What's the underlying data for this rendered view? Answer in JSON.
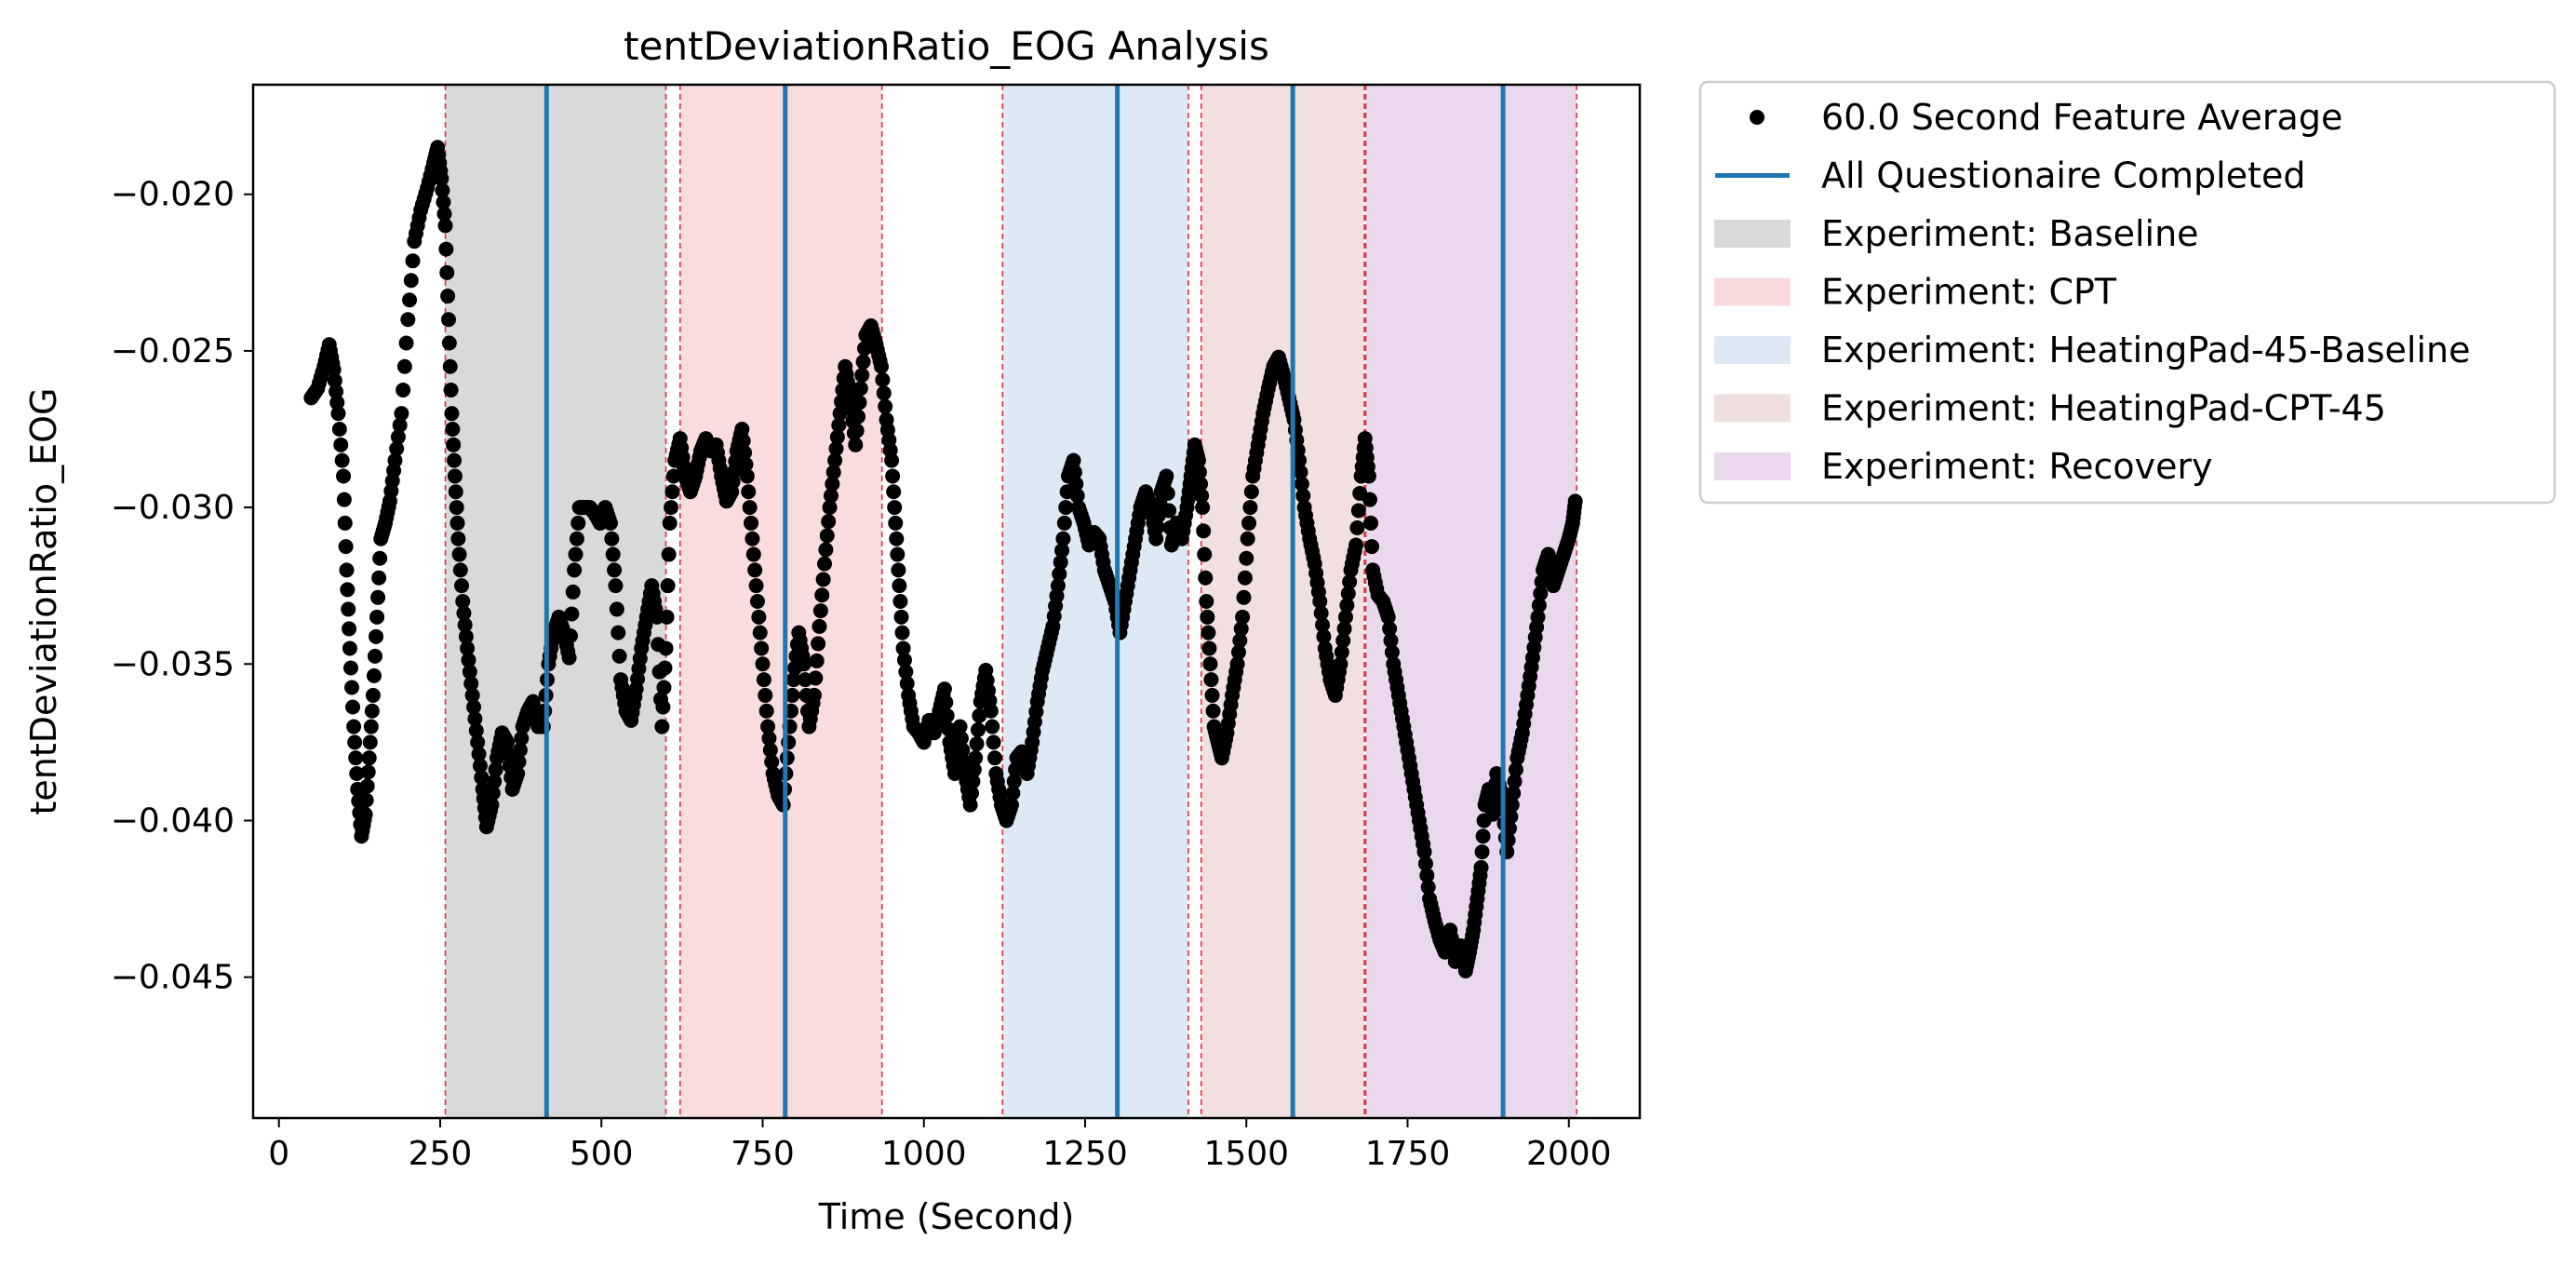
{
  "chart_data": {
    "type": "scatter",
    "title": "tentDeviationRatio_EOG Analysis",
    "xlabel": "Time (Second)",
    "ylabel": "tentDeviationRatio_EOG",
    "xlim": [
      -40,
      2110
    ],
    "ylim": [
      -0.0495,
      -0.0165
    ],
    "xticks": [
      0,
      250,
      500,
      750,
      1000,
      1250,
      1500,
      1750,
      2000
    ],
    "xtick_labels": [
      "0",
      "250",
      "500",
      "750",
      "1000",
      "1250",
      "1500",
      "1750",
      "2000"
    ],
    "yticks": [
      -0.02,
      -0.025,
      -0.03,
      -0.035,
      -0.04,
      -0.045
    ],
    "ytick_labels": [
      "−0.020",
      "−0.025",
      "−0.030",
      "−0.035",
      "−0.040",
      "−0.045"
    ],
    "grid": false,
    "legend_position": "outside-right-top",
    "series": [
      {
        "name": "60.0 Second Feature Average",
        "color": "#000000",
        "marker": "circle",
        "points": [
          [
            50,
            -0.0265
          ],
          [
            60,
            -0.0262
          ],
          [
            70,
            -0.0255
          ],
          [
            78,
            -0.0248
          ],
          [
            85,
            -0.0256
          ],
          [
            92,
            -0.027
          ],
          [
            100,
            -0.029
          ],
          [
            105,
            -0.032
          ],
          [
            110,
            -0.0345
          ],
          [
            116,
            -0.037
          ],
          [
            122,
            -0.039
          ],
          [
            128,
            -0.0405
          ],
          [
            134,
            -0.0398
          ],
          [
            140,
            -0.038
          ],
          [
            146,
            -0.036
          ],
          [
            152,
            -0.0335
          ],
          [
            158,
            -0.031
          ],
          [
            165,
            -0.0305
          ],
          [
            172,
            -0.0298
          ],
          [
            180,
            -0.0285
          ],
          [
            190,
            -0.027
          ],
          [
            200,
            -0.024
          ],
          [
            210,
            -0.0215
          ],
          [
            220,
            -0.0205
          ],
          [
            230,
            -0.0198
          ],
          [
            240,
            -0.019
          ],
          [
            246,
            -0.0185
          ],
          [
            252,
            -0.0195
          ],
          [
            258,
            -0.021
          ],
          [
            263,
            -0.024
          ],
          [
            268,
            -0.027
          ],
          [
            273,
            -0.029
          ],
          [
            278,
            -0.031
          ],
          [
            285,
            -0.033
          ],
          [
            292,
            -0.0345
          ],
          [
            300,
            -0.036
          ],
          [
            308,
            -0.0375
          ],
          [
            316,
            -0.039
          ],
          [
            322,
            -0.0402
          ],
          [
            330,
            -0.0395
          ],
          [
            338,
            -0.038
          ],
          [
            346,
            -0.0372
          ],
          [
            354,
            -0.0375
          ],
          [
            362,
            -0.039
          ],
          [
            370,
            -0.0385
          ],
          [
            378,
            -0.037
          ],
          [
            386,
            -0.0365
          ],
          [
            394,
            -0.0362
          ],
          [
            402,
            -0.037
          ],
          [
            410,
            -0.037
          ],
          [
            418,
            -0.035
          ],
          [
            426,
            -0.034
          ],
          [
            434,
            -0.0335
          ],
          [
            442,
            -0.034
          ],
          [
            450,
            -0.0348
          ],
          [
            458,
            -0.032
          ],
          [
            466,
            -0.03
          ],
          [
            474,
            -0.03
          ],
          [
            482,
            -0.03
          ],
          [
            490,
            -0.0302
          ],
          [
            498,
            -0.0305
          ],
          [
            506,
            -0.03
          ],
          [
            514,
            -0.0305
          ],
          [
            522,
            -0.0325
          ],
          [
            530,
            -0.0355
          ],
          [
            538,
            -0.0365
          ],
          [
            546,
            -0.0368
          ],
          [
            554,
            -0.0358
          ],
          [
            562,
            -0.0345
          ],
          [
            570,
            -0.0335
          ],
          [
            578,
            -0.0325
          ],
          [
            586,
            -0.0335
          ],
          [
            594,
            -0.037
          ],
          [
            600,
            -0.0345
          ],
          [
            606,
            -0.0305
          ],
          [
            614,
            -0.0285
          ],
          [
            622,
            -0.0278
          ],
          [
            630,
            -0.029
          ],
          [
            638,
            -0.0295
          ],
          [
            646,
            -0.029
          ],
          [
            654,
            -0.0282
          ],
          [
            662,
            -0.0278
          ],
          [
            670,
            -0.0282
          ],
          [
            678,
            -0.028
          ],
          [
            686,
            -0.029
          ],
          [
            694,
            -0.0298
          ],
          [
            702,
            -0.0295
          ],
          [
            710,
            -0.0282
          ],
          [
            718,
            -0.0275
          ],
          [
            726,
            -0.029
          ],
          [
            734,
            -0.031
          ],
          [
            742,
            -0.033
          ],
          [
            750,
            -0.035
          ],
          [
            758,
            -0.037
          ],
          [
            766,
            -0.0385
          ],
          [
            774,
            -0.0392
          ],
          [
            782,
            -0.0395
          ],
          [
            790,
            -0.0375
          ],
          [
            798,
            -0.0355
          ],
          [
            806,
            -0.034
          ],
          [
            814,
            -0.035
          ],
          [
            822,
            -0.037
          ],
          [
            830,
            -0.036
          ],
          [
            838,
            -0.0338
          ],
          [
            846,
            -0.0318
          ],
          [
            854,
            -0.03
          ],
          [
            862,
            -0.0285
          ],
          [
            870,
            -0.027
          ],
          [
            878,
            -0.0255
          ],
          [
            886,
            -0.0265
          ],
          [
            894,
            -0.028
          ],
          [
            902,
            -0.0262
          ],
          [
            910,
            -0.0245
          ],
          [
            918,
            -0.0242
          ],
          [
            926,
            -0.0248
          ],
          [
            934,
            -0.0255
          ],
          [
            942,
            -0.0272
          ],
          [
            950,
            -0.0285
          ],
          [
            956,
            -0.0305
          ],
          [
            962,
            -0.0325
          ],
          [
            968,
            -0.0345
          ],
          [
            976,
            -0.036
          ],
          [
            984,
            -0.037
          ],
          [
            992,
            -0.0372
          ],
          [
            1000,
            -0.0375
          ],
          [
            1008,
            -0.0368
          ],
          [
            1016,
            -0.0372
          ],
          [
            1024,
            -0.0365
          ],
          [
            1032,
            -0.0358
          ],
          [
            1040,
            -0.0375
          ],
          [
            1048,
            -0.0385
          ],
          [
            1056,
            -0.037
          ],
          [
            1064,
            -0.0385
          ],
          [
            1072,
            -0.0395
          ],
          [
            1080,
            -0.038
          ],
          [
            1088,
            -0.0362
          ],
          [
            1096,
            -0.0352
          ],
          [
            1104,
            -0.0365
          ],
          [
            1112,
            -0.0385
          ],
          [
            1120,
            -0.0395
          ],
          [
            1128,
            -0.04
          ],
          [
            1136,
            -0.0395
          ],
          [
            1144,
            -0.038
          ],
          [
            1152,
            -0.0378
          ],
          [
            1160,
            -0.0385
          ],
          [
            1168,
            -0.0375
          ],
          [
            1176,
            -0.0362
          ],
          [
            1184,
            -0.0352
          ],
          [
            1192,
            -0.0345
          ],
          [
            1200,
            -0.0338
          ],
          [
            1208,
            -0.0325
          ],
          [
            1216,
            -0.031
          ],
          [
            1224,
            -0.029
          ],
          [
            1232,
            -0.0285
          ],
          [
            1240,
            -0.03
          ],
          [
            1248,
            -0.0305
          ],
          [
            1256,
            -0.0312
          ],
          [
            1264,
            -0.0308
          ],
          [
            1272,
            -0.031
          ],
          [
            1280,
            -0.032
          ],
          [
            1288,
            -0.0325
          ],
          [
            1296,
            -0.033
          ],
          [
            1304,
            -0.034
          ],
          [
            1312,
            -0.033
          ],
          [
            1320,
            -0.032
          ],
          [
            1328,
            -0.031
          ],
          [
            1336,
            -0.03
          ],
          [
            1344,
            -0.0295
          ],
          [
            1352,
            -0.03
          ],
          [
            1360,
            -0.031
          ],
          [
            1368,
            -0.0295
          ],
          [
            1376,
            -0.029
          ],
          [
            1384,
            -0.0312
          ],
          [
            1392,
            -0.0305
          ],
          [
            1400,
            -0.031
          ],
          [
            1408,
            -0.03
          ],
          [
            1414,
            -0.029
          ],
          [
            1420,
            -0.028
          ],
          [
            1426,
            -0.0285
          ],
          [
            1432,
            -0.03
          ],
          [
            1438,
            -0.033
          ],
          [
            1444,
            -0.035
          ],
          [
            1450,
            -0.037
          ],
          [
            1456,
            -0.0375
          ],
          [
            1462,
            -0.038
          ],
          [
            1470,
            -0.0372
          ],
          [
            1478,
            -0.036
          ],
          [
            1486,
            -0.035
          ],
          [
            1494,
            -0.0335
          ],
          [
            1502,
            -0.031
          ],
          [
            1510,
            -0.029
          ],
          [
            1518,
            -0.028
          ],
          [
            1526,
            -0.027
          ],
          [
            1534,
            -0.0262
          ],
          [
            1542,
            -0.0255
          ],
          [
            1550,
            -0.0252
          ],
          [
            1558,
            -0.0258
          ],
          [
            1566,
            -0.0265
          ],
          [
            1574,
            -0.0272
          ],
          [
            1582,
            -0.0285
          ],
          [
            1590,
            -0.03
          ],
          [
            1598,
            -0.031
          ],
          [
            1606,
            -0.0318
          ],
          [
            1614,
            -0.033
          ],
          [
            1622,
            -0.0345
          ],
          [
            1630,
            -0.0355
          ],
          [
            1638,
            -0.036
          ],
          [
            1646,
            -0.035
          ],
          [
            1654,
            -0.0335
          ],
          [
            1662,
            -0.032
          ],
          [
            1670,
            -0.0312
          ],
          [
            1678,
            -0.029
          ],
          [
            1684,
            -0.0278
          ],
          [
            1690,
            -0.029
          ],
          [
            1696,
            -0.032
          ],
          [
            1704,
            -0.0328
          ],
          [
            1712,
            -0.033
          ],
          [
            1720,
            -0.0335
          ],
          [
            1728,
            -0.035
          ],
          [
            1736,
            -0.036
          ],
          [
            1744,
            -0.037
          ],
          [
            1752,
            -0.038
          ],
          [
            1760,
            -0.039
          ],
          [
            1768,
            -0.04
          ],
          [
            1776,
            -0.041
          ],
          [
            1784,
            -0.0425
          ],
          [
            1792,
            -0.0432
          ],
          [
            1800,
            -0.0438
          ],
          [
            1808,
            -0.0442
          ],
          [
            1816,
            -0.0435
          ],
          [
            1824,
            -0.0445
          ],
          [
            1832,
            -0.044
          ],
          [
            1840,
            -0.0448
          ],
          [
            1846,
            -0.0442
          ],
          [
            1852,
            -0.0435
          ],
          [
            1858,
            -0.0425
          ],
          [
            1864,
            -0.0415
          ],
          [
            1870,
            -0.0395
          ],
          [
            1876,
            -0.039
          ],
          [
            1882,
            -0.0398
          ],
          [
            1888,
            -0.0385
          ],
          [
            1896,
            -0.0392
          ],
          [
            1904,
            -0.041
          ],
          [
            1912,
            -0.0395
          ],
          [
            1920,
            -0.038
          ],
          [
            1928,
            -0.0372
          ],
          [
            1936,
            -0.036
          ],
          [
            1944,
            -0.0348
          ],
          [
            1952,
            -0.0335
          ],
          [
            1960,
            -0.032
          ],
          [
            1968,
            -0.0315
          ],
          [
            1976,
            -0.0325
          ],
          [
            1984,
            -0.032
          ],
          [
            1992,
            -0.0315
          ],
          [
            2000,
            -0.031
          ],
          [
            2006,
            -0.0305
          ],
          [
            2010,
            -0.0298
          ]
        ]
      }
    ],
    "vertical_lines": {
      "name": "All Questionaire Completed",
      "color": "#1f77b4",
      "x": [
        415,
        785,
        1300,
        1572,
        1898
      ]
    },
    "spans": [
      {
        "name": "Experiment: Baseline",
        "start": 258,
        "end": 600,
        "color": "#bfbfbf",
        "alpha": 0.6
      },
      {
        "name": "Experiment: CPT",
        "start": 622,
        "end": 935,
        "color": "#f4bfc2",
        "alpha": 0.55
      },
      {
        "name": "Experiment: HeatingPad-45-Baseline",
        "start": 1122,
        "end": 1410,
        "color": "#c6dcee",
        "alpha": 0.6
      },
      {
        "name": "Experiment: HeatingPad-CPT-45",
        "start": 1430,
        "end": 1683,
        "color": "#e7c6c8",
        "alpha": 0.55
      },
      {
        "name": "Experiment: Recovery",
        "start": 1685,
        "end": 2012,
        "color": "#d9b9e0",
        "alpha": 0.55
      }
    ],
    "span_boundaries": {
      "color": "#e0303a",
      "x": [
        258,
        600,
        622,
        935,
        1122,
        1410,
        1430,
        1683,
        1685,
        2012
      ]
    },
    "legend": [
      {
        "label": "60.0 Second Feature Average",
        "kind": "marker",
        "color": "#000000"
      },
      {
        "label": "All Questionaire Completed",
        "kind": "line",
        "color": "#1f77b4"
      },
      {
        "label": "Experiment: Baseline",
        "kind": "patch",
        "color": "#d9d9d9"
      },
      {
        "label": "Experiment: CPT",
        "kind": "patch",
        "color": "#f8dadc"
      },
      {
        "label": "Experiment: HeatingPad-45-Baseline",
        "kind": "patch",
        "color": "#dce8f3"
      },
      {
        "label": "Experiment: HeatingPad-CPT-45",
        "kind": "patch",
        "color": "#f0dfe0"
      },
      {
        "label": "Experiment: Recovery",
        "kind": "patch",
        "color": "#ead8ec"
      }
    ]
  }
}
